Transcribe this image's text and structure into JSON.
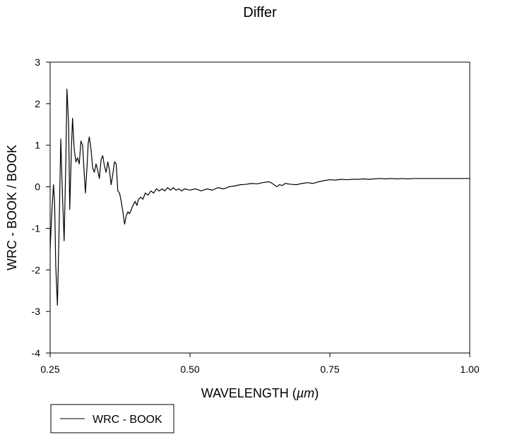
{
  "chart_data": {
    "type": "line",
    "title": "Differ",
    "xlabel_main": "WAVELENGTH (",
    "xlabel_unit": "µm",
    "xlabel_close": ")",
    "ylabel": "WRC - BOOK / BOOK",
    "xlim": [
      0.25,
      1.0
    ],
    "ylim": [
      -4,
      3
    ],
    "x_ticks": [
      "0.25",
      "0.50",
      "0.75",
      "1.00"
    ],
    "y_ticks": [
      "3",
      "2",
      "1",
      "0",
      "-1",
      "-2",
      "-3",
      "-4"
    ],
    "grid": false,
    "legend_position": "bottom-left",
    "series": [
      {
        "name": "WRC - BOOK",
        "color": "#000000",
        "points": [
          [
            0.25,
            -1.5
          ],
          [
            0.253,
            -0.6
          ],
          [
            0.256,
            0.05
          ],
          [
            0.258,
            -0.4
          ],
          [
            0.26,
            -1.9
          ],
          [
            0.263,
            -2.85
          ],
          [
            0.266,
            -1.0
          ],
          [
            0.269,
            1.15
          ],
          [
            0.272,
            -0.2
          ],
          [
            0.275,
            -1.3
          ],
          [
            0.278,
            0.6
          ],
          [
            0.28,
            2.35
          ],
          [
            0.283,
            1.5
          ],
          [
            0.285,
            -0.55
          ],
          [
            0.288,
            0.9
          ],
          [
            0.29,
            1.65
          ],
          [
            0.293,
            0.9
          ],
          [
            0.296,
            0.6
          ],
          [
            0.299,
            0.7
          ],
          [
            0.302,
            0.55
          ],
          [
            0.305,
            1.1
          ],
          [
            0.308,
            1.0
          ],
          [
            0.311,
            0.3
          ],
          [
            0.313,
            -0.15
          ],
          [
            0.316,
            0.5
          ],
          [
            0.318,
            1.05
          ],
          [
            0.32,
            1.2
          ],
          [
            0.323,
            0.9
          ],
          [
            0.326,
            0.45
          ],
          [
            0.329,
            0.35
          ],
          [
            0.332,
            0.55
          ],
          [
            0.335,
            0.4
          ],
          [
            0.338,
            0.2
          ],
          [
            0.341,
            0.65
          ],
          [
            0.344,
            0.75
          ],
          [
            0.347,
            0.5
          ],
          [
            0.35,
            0.35
          ],
          [
            0.353,
            0.6
          ],
          [
            0.356,
            0.4
          ],
          [
            0.359,
            0.05
          ],
          [
            0.362,
            0.3
          ],
          [
            0.365,
            0.6
          ],
          [
            0.368,
            0.55
          ],
          [
            0.371,
            -0.1
          ],
          [
            0.374,
            -0.15
          ],
          [
            0.377,
            -0.35
          ],
          [
            0.38,
            -0.6
          ],
          [
            0.383,
            -0.9
          ],
          [
            0.386,
            -0.7
          ],
          [
            0.389,
            -0.6
          ],
          [
            0.392,
            -0.65
          ],
          [
            0.395,
            -0.55
          ],
          [
            0.398,
            -0.45
          ],
          [
            0.402,
            -0.35
          ],
          [
            0.405,
            -0.45
          ],
          [
            0.408,
            -0.3
          ],
          [
            0.412,
            -0.25
          ],
          [
            0.416,
            -0.3
          ],
          [
            0.42,
            -0.15
          ],
          [
            0.425,
            -0.2
          ],
          [
            0.43,
            -0.1
          ],
          [
            0.435,
            -0.15
          ],
          [
            0.44,
            -0.05
          ],
          [
            0.445,
            -0.1
          ],
          [
            0.45,
            -0.05
          ],
          [
            0.455,
            -0.1
          ],
          [
            0.46,
            -0.02
          ],
          [
            0.465,
            -0.08
          ],
          [
            0.47,
            -0.02
          ],
          [
            0.475,
            -0.08
          ],
          [
            0.48,
            -0.05
          ],
          [
            0.485,
            -0.1
          ],
          [
            0.49,
            -0.05
          ],
          [
            0.5,
            -0.08
          ],
          [
            0.51,
            -0.05
          ],
          [
            0.52,
            -0.1
          ],
          [
            0.53,
            -0.05
          ],
          [
            0.54,
            -0.08
          ],
          [
            0.55,
            -0.02
          ],
          [
            0.56,
            -0.05
          ],
          [
            0.57,
            0.0
          ],
          [
            0.58,
            0.02
          ],
          [
            0.59,
            0.05
          ],
          [
            0.6,
            0.06
          ],
          [
            0.61,
            0.08
          ],
          [
            0.62,
            0.07
          ],
          [
            0.63,
            0.1
          ],
          [
            0.64,
            0.12
          ],
          [
            0.645,
            0.1
          ],
          [
            0.65,
            0.05
          ],
          [
            0.655,
            0.0
          ],
          [
            0.66,
            0.05
          ],
          [
            0.665,
            0.03
          ],
          [
            0.67,
            0.08
          ],
          [
            0.68,
            0.06
          ],
          [
            0.69,
            0.05
          ],
          [
            0.7,
            0.08
          ],
          [
            0.71,
            0.1
          ],
          [
            0.72,
            0.08
          ],
          [
            0.73,
            0.12
          ],
          [
            0.74,
            0.15
          ],
          [
            0.75,
            0.17
          ],
          [
            0.76,
            0.16
          ],
          [
            0.77,
            0.18
          ],
          [
            0.78,
            0.17
          ],
          [
            0.79,
            0.18
          ],
          [
            0.8,
            0.18
          ],
          [
            0.81,
            0.19
          ],
          [
            0.82,
            0.18
          ],
          [
            0.83,
            0.19
          ],
          [
            0.84,
            0.2
          ],
          [
            0.85,
            0.19
          ],
          [
            0.86,
            0.2
          ],
          [
            0.87,
            0.19
          ],
          [
            0.88,
            0.2
          ],
          [
            0.89,
            0.19
          ],
          [
            0.9,
            0.2
          ],
          [
            0.92,
            0.2
          ],
          [
            0.94,
            0.2
          ],
          [
            0.96,
            0.2
          ],
          [
            0.98,
            0.2
          ],
          [
            1.0,
            0.2
          ]
        ]
      }
    ]
  }
}
